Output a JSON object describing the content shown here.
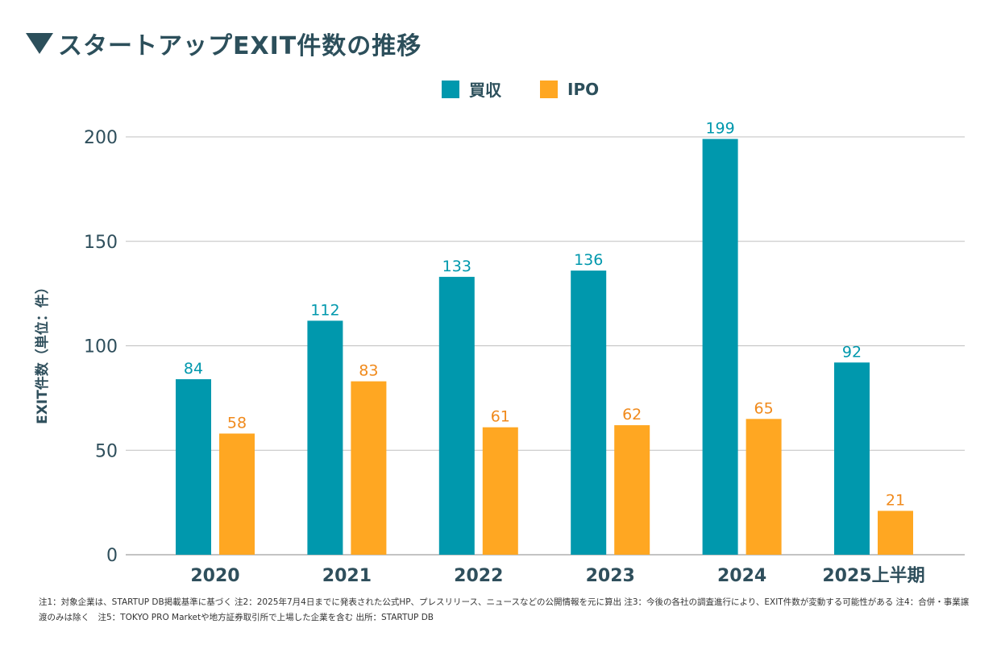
{
  "title": "スタートアップEXIT件数の推移",
  "colors": {
    "acquisition": "#0098ad",
    "ipo": "#ffa722",
    "acquisition_label": "#0098ad",
    "ipo_label": "#f08a1c",
    "axis_text": "#2f4f5c",
    "grid": "#bfbfbf"
  },
  "footnote": "注1：対象企業は、STARTUP DB掲載基準に基づく 注2：2025年7月4日までに発表された公式HP、プレスリリース、ニュースなどの公開情報を元に算出 注3：今後の各社の調査進行により、EXIT件数が変動する可能性がある 注4：合併・事業譲渡のみは除く　注5：TOKYO PRO Marketや地方証券取引所で上場した企業を含む 出所：STARTUP DB",
  "chart_data": {
    "type": "bar",
    "title": "スタートアップEXIT件数の推移",
    "xlabel": "",
    "ylabel": "EXIT件数（単位：件）",
    "categories": [
      "2020",
      "2021",
      "2022",
      "2023",
      "2024",
      "2025上半期"
    ],
    "series": [
      {
        "name": "買収",
        "values": [
          84,
          112,
          133,
          136,
          199,
          92
        ]
      },
      {
        "name": "IPO",
        "values": [
          58,
          83,
          61,
          62,
          65,
          21
        ]
      }
    ],
    "ylim": [
      0,
      200
    ],
    "yticks": [
      0,
      50,
      100,
      150,
      200
    ],
    "grid": true,
    "legend_position": "top-center"
  }
}
